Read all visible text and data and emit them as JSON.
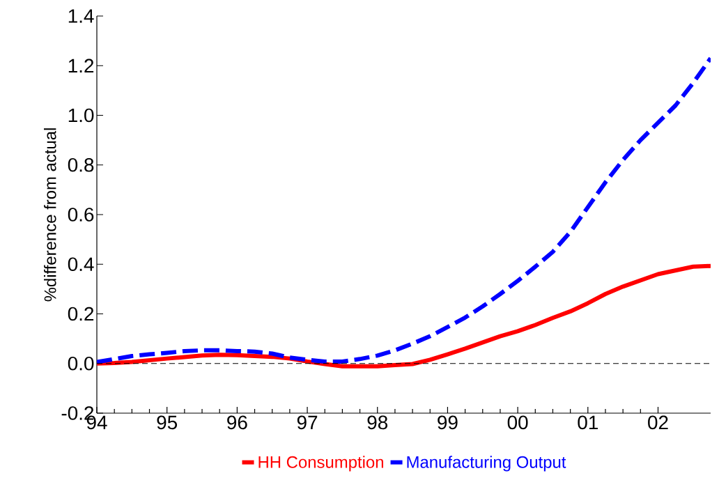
{
  "chart_data": {
    "type": "line",
    "ylabel": "%difference from actual",
    "x": [
      1994,
      1994.25,
      1994.5,
      1994.75,
      1995,
      1995.25,
      1995.5,
      1995.75,
      1996,
      1996.25,
      1996.5,
      1996.75,
      1997,
      1997.25,
      1997.5,
      1997.75,
      1998,
      1998.25,
      1998.5,
      1998.75,
      1999,
      1999.25,
      1999.5,
      1999.75,
      2000,
      2000.25,
      2000.5,
      2000.75,
      2001,
      2001.25,
      2001.5,
      2001.75,
      2002,
      2002.25,
      2002.5,
      2002.75
    ],
    "series": [
      {
        "name": "HH Consumption",
        "color": "#ff0000",
        "line_style": "solid",
        "values": [
          0.0,
          0.002,
          0.006,
          0.013,
          0.02,
          0.026,
          0.032,
          0.035,
          0.034,
          0.03,
          0.027,
          0.02,
          0.008,
          -0.002,
          -0.011,
          -0.011,
          -0.011,
          -0.006,
          -0.002,
          0.015,
          0.037,
          0.06,
          0.085,
          0.11,
          0.13,
          0.155,
          0.184,
          0.21,
          0.243,
          0.28,
          0.31,
          0.335,
          0.36,
          0.375,
          0.39,
          0.393
        ]
      },
      {
        "name": "Manufacturing Output",
        "color": "#0000ff",
        "line_style": "dashed",
        "values": [
          0.006,
          0.018,
          0.03,
          0.037,
          0.043,
          0.05,
          0.053,
          0.053,
          0.05,
          0.048,
          0.04,
          0.024,
          0.015,
          0.008,
          0.008,
          0.018,
          0.032,
          0.053,
          0.08,
          0.11,
          0.147,
          0.185,
          0.23,
          0.28,
          0.333,
          0.39,
          0.45,
          0.53,
          0.63,
          0.73,
          0.82,
          0.9,
          0.97,
          1.04,
          1.13,
          1.23
        ]
      }
    ],
    "xlim": [
      1994,
      2002.75
    ],
    "xticks": [
      {
        "value": 1994,
        "label": "94"
      },
      {
        "value": 1995,
        "label": "95"
      },
      {
        "value": 1996,
        "label": "96"
      },
      {
        "value": 1997,
        "label": "97"
      },
      {
        "value": 1998,
        "label": "98"
      },
      {
        "value": 1999,
        "label": "99"
      },
      {
        "value": 2000,
        "label": "00"
      },
      {
        "value": 2001,
        "label": "01"
      },
      {
        "value": 2002,
        "label": "02"
      }
    ],
    "ylim": [
      -0.2,
      1.4
    ],
    "yticks": [
      {
        "value": -0.2,
        "label": "-0.2"
      },
      {
        "value": 0,
        "label": "0.0"
      },
      {
        "value": 0.2,
        "label": "0.2"
      },
      {
        "value": 0.4,
        "label": "0.4"
      },
      {
        "value": 0.6,
        "label": "0.6"
      },
      {
        "value": 0.8,
        "label": "0.8"
      },
      {
        "value": 1.0,
        "label": "1.0"
      },
      {
        "value": 1.2,
        "label": "1.2"
      },
      {
        "value": 1.4,
        "label": "1.4"
      }
    ],
    "ref_lines": [
      {
        "axis": "y",
        "value": 0,
        "color": "#000000",
        "line_style": "dashed"
      }
    ],
    "legend": "bottom",
    "grid": false,
    "marker": "none"
  }
}
